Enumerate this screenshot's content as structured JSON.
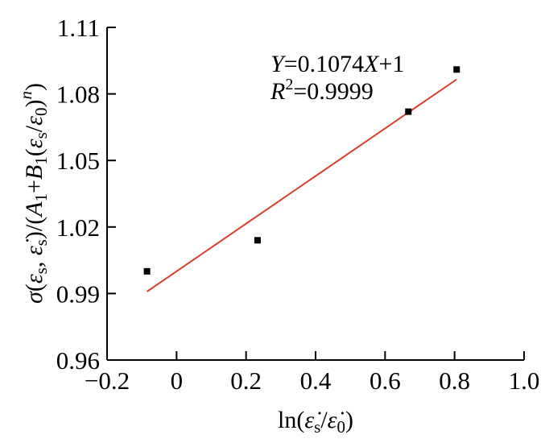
{
  "chart_data": {
    "type": "scatter",
    "xlabel": "ln(ε̇s/ε̇0)",
    "ylabel": "σ(εs, ε̇s)/(A1+B1(εs/ε0)^n)",
    "xlim": [
      -0.2,
      1.0
    ],
    "ylim": [
      0.96,
      1.11
    ],
    "x_ticks": [
      "−0.2",
      "0",
      "0.2",
      "0.4",
      "0.6",
      "0.8",
      "1.0"
    ],
    "x_tick_values": [
      -0.2,
      0,
      0.2,
      0.4,
      0.6,
      0.8,
      1.0
    ],
    "y_ticks": [
      "0.96",
      "0.99",
      "1.02",
      "1.05",
      "1.08",
      "1.11"
    ],
    "y_tick_values": [
      0.96,
      0.99,
      1.02,
      1.05,
      1.08,
      1.11
    ],
    "grid": false,
    "series": [
      {
        "kind": "points",
        "marker": "square",
        "color": "#000000",
        "x": [
          -0.085,
          0.233,
          0.667,
          0.806
        ],
        "y": [
          1.0,
          1.014,
          1.072,
          1.091
        ]
      },
      {
        "kind": "fit-line",
        "color": "#d9402b",
        "slope": 0.1074,
        "intercept": 1,
        "x_range": [
          -0.085,
          0.806
        ]
      }
    ],
    "annotations": {
      "equation": "Y=0.1074X+1",
      "r_squared": "R2=0.9999"
    }
  }
}
